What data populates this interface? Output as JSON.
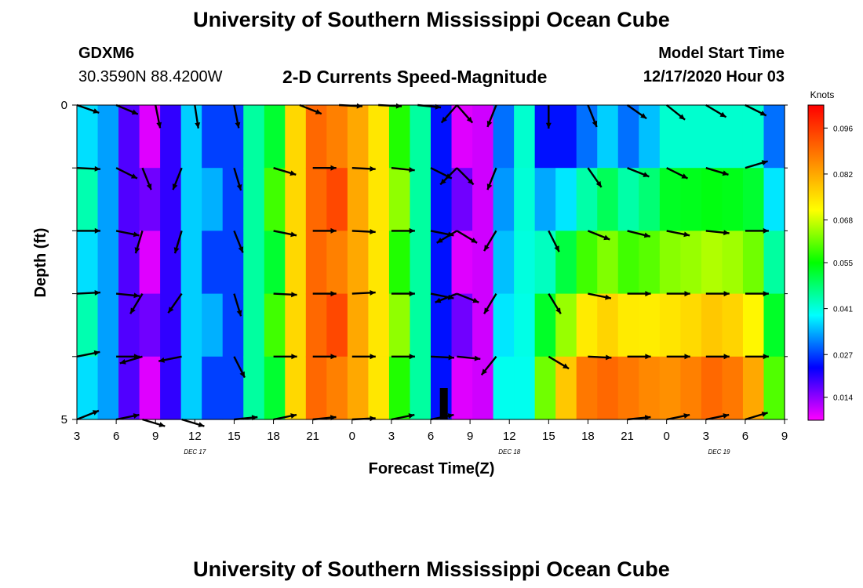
{
  "header": {
    "title": "University of Southern Mississippi Ocean Cube",
    "station": "GDXM6",
    "coords": "30.3590N 88.4200W",
    "subtitle": "2-D Currents Speed-Magnitude",
    "model_label": "Model Start Time",
    "model_time": "12/17/2020 Hour 03"
  },
  "footer": {
    "title": "University of Southern Mississippi Ocean Cube"
  },
  "chart_data": {
    "type": "heatmap",
    "title": "2-D Currents Speed-Magnitude",
    "xlabel": "Forecast Time(Z)",
    "ylabel": "Depth (ft)",
    "x_ticks": [
      "3",
      "6",
      "9",
      "12",
      "15",
      "18",
      "21",
      "0",
      "3",
      "6",
      "9",
      "12",
      "15",
      "18",
      "21",
      "0",
      "3",
      "6",
      "9"
    ],
    "date_labels": [
      {
        "label": "DEC 17",
        "hours_from_start": 9
      },
      {
        "label": "DEC 18",
        "hours_from_start": 33
      },
      {
        "label": "DEC 19",
        "hours_from_start": 49
      }
    ],
    "x_range_hours": [
      0,
      54
    ],
    "y_ticks": [
      "0",
      "5"
    ],
    "y_range_ft": [
      0,
      5
    ],
    "colorbar": {
      "unit": "Knots",
      "ticks": [
        "0.096",
        "0.082",
        "0.068",
        "0.055",
        "0.041",
        "0.027",
        "0.014"
      ],
      "min": 0.007,
      "max": 0.103,
      "colors": [
        "#ff00ff",
        "#8000ff",
        "#0000ff",
        "#0080ff",
        "#00ffff",
        "#00ff80",
        "#00ff00",
        "#80ff00",
        "#ffff00",
        "#ffc000",
        "#ff8000",
        "#ff4000",
        "#ff0000"
      ]
    },
    "column_speeds_knots": [
      0.04,
      0.033,
      0.018,
      0.012,
      0.02,
      0.036,
      0.03,
      0.027,
      0.045,
      0.055,
      0.076,
      0.09,
      0.09,
      0.082,
      0.074,
      0.06,
      0.045,
      0.024,
      0.012,
      0.01,
      0.03,
      0.042,
      0.024,
      0.024,
      0.03,
      0.036,
      0.03,
      0.035,
      0.042,
      0.042,
      0.042,
      0.042,
      0.042,
      0.03
    ],
    "deep_speeds_knots": [
      0.04,
      0.04,
      0.062,
      0.078,
      0.088,
      0.09,
      0.088,
      0.086,
      0.085,
      0.087,
      0.09,
      0.088,
      0.082,
      0.06
    ],
    "vectors": [
      {
        "hour": 0,
        "depth_ft": 0,
        "u": 1,
        "v": 0.35
      },
      {
        "hour": 3,
        "depth_ft": 0,
        "u": 0.95,
        "v": 0.4
      },
      {
        "hour": 6,
        "depth_ft": 0,
        "u": 0.2,
        "v": 1
      },
      {
        "hour": 9,
        "depth_ft": 0,
        "u": 0.15,
        "v": 1
      },
      {
        "hour": 12,
        "depth_ft": 0,
        "u": 0.2,
        "v": 1
      },
      {
        "hour": 17,
        "depth_ft": 0,
        "u": 1,
        "v": 0.4
      },
      {
        "hour": 20,
        "depth_ft": 0,
        "u": 1,
        "v": 0.05
      },
      {
        "hour": 23,
        "depth_ft": 0,
        "u": 1,
        "v": 0.05
      },
      {
        "hour": 26,
        "depth_ft": 0,
        "u": 1,
        "v": 0.1
      },
      {
        "hour": 29,
        "depth_ft": 0,
        "u": 0.7,
        "v": 0.8
      },
      {
        "hour": 29,
        "depth_ft": 0,
        "u": -0.7,
        "v": 0.8
      },
      {
        "hour": 32,
        "depth_ft": 0,
        "u": -0.4,
        "v": 1
      },
      {
        "hour": 36,
        "depth_ft": 0,
        "u": 0,
        "v": 1
      },
      {
        "hour": 39,
        "depth_ft": 0,
        "u": 0.4,
        "v": 1
      },
      {
        "hour": 42,
        "depth_ft": 0,
        "u": 1,
        "v": 0.7
      },
      {
        "hour": 45,
        "depth_ft": 0,
        "u": 1,
        "v": 0.8
      },
      {
        "hour": 48,
        "depth_ft": 0,
        "u": 1,
        "v": 0.6
      },
      {
        "hour": 51,
        "depth_ft": 0,
        "u": 1,
        "v": 0.5
      },
      {
        "hour": 0,
        "depth_ft": 1,
        "u": 1,
        "v": 0.05
      },
      {
        "hour": 3,
        "depth_ft": 1,
        "u": 1,
        "v": 0.5
      },
      {
        "hour": 5,
        "depth_ft": 1,
        "u": 0.4,
        "v": 1
      },
      {
        "hour": 8,
        "depth_ft": 1,
        "u": -0.4,
        "v": 1
      },
      {
        "hour": 12,
        "depth_ft": 1,
        "u": 0.3,
        "v": 1
      },
      {
        "hour": 15,
        "depth_ft": 1,
        "u": 1,
        "v": 0.3
      },
      {
        "hour": 18,
        "depth_ft": 1,
        "u": 1,
        "v": 0
      },
      {
        "hour": 21,
        "depth_ft": 1,
        "u": 1,
        "v": 0.05
      },
      {
        "hour": 24,
        "depth_ft": 1,
        "u": 1,
        "v": 0.1
      },
      {
        "hour": 27,
        "depth_ft": 1,
        "u": 1,
        "v": 0.5
      },
      {
        "hour": 29,
        "depth_ft": 1,
        "u": 0.8,
        "v": 0.8
      },
      {
        "hour": 29,
        "depth_ft": 1,
        "u": -0.8,
        "v": 0.8
      },
      {
        "hour": 32,
        "depth_ft": 1,
        "u": -0.4,
        "v": 1
      },
      {
        "hour": 39,
        "depth_ft": 1,
        "u": 0.7,
        "v": 1
      },
      {
        "hour": 42,
        "depth_ft": 1,
        "u": 1,
        "v": 0.4
      },
      {
        "hour": 45,
        "depth_ft": 1,
        "u": 1,
        "v": 0.5
      },
      {
        "hour": 48,
        "depth_ft": 1,
        "u": 1,
        "v": 0.3
      },
      {
        "hour": 51,
        "depth_ft": 1,
        "u": 1,
        "v": -0.3
      },
      {
        "hour": 0,
        "depth_ft": 2,
        "u": 1,
        "v": 0
      },
      {
        "hour": 3,
        "depth_ft": 2,
        "u": 1,
        "v": 0.2
      },
      {
        "hour": 5,
        "depth_ft": 2,
        "u": -0.3,
        "v": 1
      },
      {
        "hour": 8,
        "depth_ft": 2,
        "u": -0.3,
        "v": 1
      },
      {
        "hour": 12,
        "depth_ft": 2,
        "u": 0.4,
        "v": 1
      },
      {
        "hour": 15,
        "depth_ft": 2,
        "u": 1,
        "v": 0.2
      },
      {
        "hour": 18,
        "depth_ft": 2,
        "u": 1,
        "v": 0
      },
      {
        "hour": 21,
        "depth_ft": 2,
        "u": 1,
        "v": 0.05
      },
      {
        "hour": 24,
        "depth_ft": 2,
        "u": 1,
        "v": 0
      },
      {
        "hour": 27,
        "depth_ft": 2,
        "u": 1,
        "v": 0.2
      },
      {
        "hour": 29,
        "depth_ft": 2,
        "u": 1,
        "v": 0.6
      },
      {
        "hour": 29,
        "depth_ft": 2,
        "u": -1,
        "v": 0.6
      },
      {
        "hour": 32,
        "depth_ft": 2,
        "u": -0.6,
        "v": 1
      },
      {
        "hour": 36,
        "depth_ft": 2,
        "u": 0.5,
        "v": 1
      },
      {
        "hour": 39,
        "depth_ft": 2,
        "u": 1,
        "v": 0.4
      },
      {
        "hour": 42,
        "depth_ft": 2,
        "u": 1,
        "v": 0.25
      },
      {
        "hour": 45,
        "depth_ft": 2,
        "u": 1,
        "v": 0.2
      },
      {
        "hour": 48,
        "depth_ft": 2,
        "u": 1,
        "v": 0.1
      },
      {
        "hour": 51,
        "depth_ft": 2,
        "u": 1,
        "v": 0
      },
      {
        "hour": 0,
        "depth_ft": 3,
        "u": 1,
        "v": -0.05
      },
      {
        "hour": 3,
        "depth_ft": 3,
        "u": 1,
        "v": 0.1
      },
      {
        "hour": 5,
        "depth_ft": 3,
        "u": -0.6,
        "v": 1
      },
      {
        "hour": 8,
        "depth_ft": 3,
        "u": -0.7,
        "v": 1
      },
      {
        "hour": 12,
        "depth_ft": 3,
        "u": 0.3,
        "v": 1
      },
      {
        "hour": 15,
        "depth_ft": 3,
        "u": 1,
        "v": 0.05
      },
      {
        "hour": 18,
        "depth_ft": 3,
        "u": 1,
        "v": 0
      },
      {
        "hour": 21,
        "depth_ft": 3,
        "u": 1,
        "v": -0.05
      },
      {
        "hour": 24,
        "depth_ft": 3,
        "u": 1,
        "v": 0
      },
      {
        "hour": 27,
        "depth_ft": 3,
        "u": 1,
        "v": 0.2
      },
      {
        "hour": 29,
        "depth_ft": 3,
        "u": 1,
        "v": 0.4
      },
      {
        "hour": 29,
        "depth_ft": 3,
        "u": -1,
        "v": 0.4
      },
      {
        "hour": 32,
        "depth_ft": 3,
        "u": -0.6,
        "v": 1
      },
      {
        "hour": 36,
        "depth_ft": 3,
        "u": 0.6,
        "v": 1
      },
      {
        "hour": 39,
        "depth_ft": 3,
        "u": 1,
        "v": 0.2
      },
      {
        "hour": 42,
        "depth_ft": 3,
        "u": 1,
        "v": 0
      },
      {
        "hour": 45,
        "depth_ft": 3,
        "u": 1,
        "v": 0
      },
      {
        "hour": 48,
        "depth_ft": 3,
        "u": 1,
        "v": 0
      },
      {
        "hour": 51,
        "depth_ft": 3,
        "u": 1,
        "v": 0
      },
      {
        "hour": 0,
        "depth_ft": 4,
        "u": 1,
        "v": -0.2
      },
      {
        "hour": 3,
        "depth_ft": 4,
        "u": 1,
        "v": 0
      },
      {
        "hour": 5,
        "depth_ft": 4,
        "u": -1,
        "v": 0.3
      },
      {
        "hour": 8,
        "depth_ft": 4,
        "u": -1,
        "v": 0.2
      },
      {
        "hour": 12,
        "depth_ft": 4,
        "u": 0.5,
        "v": 1
      },
      {
        "hour": 15,
        "depth_ft": 4,
        "u": 1,
        "v": 0
      },
      {
        "hour": 18,
        "depth_ft": 4,
        "u": 1,
        "v": 0
      },
      {
        "hour": 21,
        "depth_ft": 4,
        "u": 1,
        "v": 0
      },
      {
        "hour": 24,
        "depth_ft": 4,
        "u": 1,
        "v": 0
      },
      {
        "hour": 27,
        "depth_ft": 4,
        "u": 1,
        "v": 0.05
      },
      {
        "hour": 29,
        "depth_ft": 4,
        "u": 1,
        "v": 0.1
      },
      {
        "hour": 32,
        "depth_ft": 4,
        "u": -0.8,
        "v": 1
      },
      {
        "hour": 36,
        "depth_ft": 4,
        "u": 1,
        "v": 0.6
      },
      {
        "hour": 39,
        "depth_ft": 4,
        "u": 1,
        "v": 0.05
      },
      {
        "hour": 42,
        "depth_ft": 4,
        "u": 1,
        "v": 0
      },
      {
        "hour": 45,
        "depth_ft": 4,
        "u": 1,
        "v": 0
      },
      {
        "hour": 48,
        "depth_ft": 4,
        "u": 1,
        "v": 0
      },
      {
        "hour": 51,
        "depth_ft": 4,
        "u": 1,
        "v": 0
      },
      {
        "hour": 0,
        "depth_ft": 5,
        "u": 1,
        "v": -0.4
      },
      {
        "hour": 3,
        "depth_ft": 5,
        "u": 1,
        "v": -0.2
      },
      {
        "hour": 5,
        "depth_ft": 5,
        "u": 1,
        "v": 0.3
      },
      {
        "hour": 8,
        "depth_ft": 5,
        "u": 1,
        "v": 0.3
      },
      {
        "hour": 12,
        "depth_ft": 5,
        "u": 1,
        "v": -0.1
      },
      {
        "hour": 15,
        "depth_ft": 5,
        "u": 1,
        "v": -0.2
      },
      {
        "hour": 18,
        "depth_ft": 5,
        "u": 1,
        "v": -0.1
      },
      {
        "hour": 21,
        "depth_ft": 5,
        "u": 1,
        "v": -0.05
      },
      {
        "hour": 24,
        "depth_ft": 5,
        "u": 1,
        "v": -0.2
      },
      {
        "hour": 27,
        "depth_ft": 5,
        "u": 1,
        "v": -0.2
      },
      {
        "hour": 42,
        "depth_ft": 5,
        "u": 1,
        "v": -0.1
      },
      {
        "hour": 45,
        "depth_ft": 5,
        "u": 1,
        "v": -0.2
      },
      {
        "hour": 48,
        "depth_ft": 5,
        "u": 1,
        "v": -0.2
      },
      {
        "hour": 51,
        "depth_ft": 5,
        "u": 1,
        "v": -0.3
      }
    ],
    "current_time_marker_hour": 28
  }
}
